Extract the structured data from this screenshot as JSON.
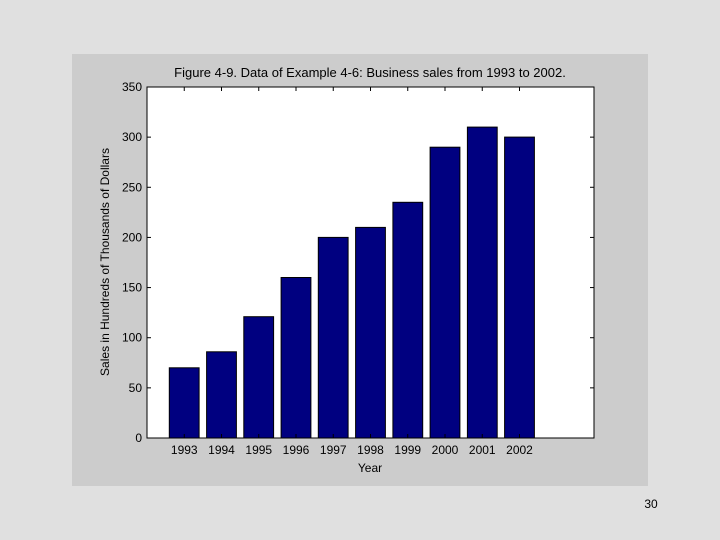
{
  "slide": {
    "page_number": "30"
  },
  "chart_data": {
    "type": "bar",
    "title": "Figure 4-9. Data of Example 4-6: Business sales from 1993 to 2002.",
    "xlabel": "Year",
    "ylabel": "Sales in Hundreds of Thousands of Dollars",
    "categories": [
      "1993",
      "1994",
      "1995",
      "1996",
      "1997",
      "1998",
      "1999",
      "2000",
      "2001",
      "2002"
    ],
    "values": [
      70,
      86,
      121,
      160,
      200,
      210,
      235,
      290,
      310,
      300
    ],
    "ylim": [
      0,
      350
    ],
    "yticks": [
      0,
      50,
      100,
      150,
      200,
      250,
      300,
      350
    ],
    "grid": false,
    "bar_color": "#000080",
    "axes_background": "#ffffff",
    "figure_background": "#cccccc"
  }
}
